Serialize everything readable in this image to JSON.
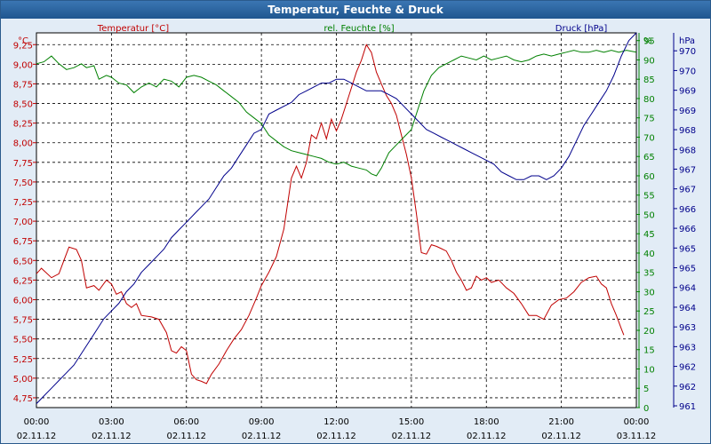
{
  "window": {
    "title": "Temperatur, Feuchte & Druck"
  },
  "colors": {
    "temperature": "#c00000",
    "humidity": "#008000",
    "pressure": "#00008b",
    "text": "#000000",
    "grid": "#000000",
    "background": "#e2ecf6",
    "title_bar": "#2a64a0"
  },
  "chart_data": {
    "type": "line",
    "title": "Temperatur, Feuchte & Druck",
    "grid": true,
    "x": {
      "ticks": [
        {
          "time": "00:00",
          "date": "02.11.12"
        },
        {
          "time": "03:00",
          "date": "02.11.12"
        },
        {
          "time": "06:00",
          "date": "02.11.12"
        },
        {
          "time": "09:00",
          "date": "02.11.12"
        },
        {
          "time": "12:00",
          "date": "02.11.12"
        },
        {
          "time": "15:00",
          "date": "02.11.12"
        },
        {
          "time": "18:00",
          "date": "02.11.12"
        },
        {
          "time": "21:00",
          "date": "02.11.12"
        },
        {
          "time": "00:00",
          "date": "03.11.12"
        }
      ],
      "range_hours": [
        0,
        24
      ]
    },
    "axes": {
      "temperature": {
        "label": "Temperatur [°C]",
        "unit": "°C",
        "range": [
          4.625,
          9.4
        ],
        "ticks": [
          "4,75",
          "5,00",
          "5,25",
          "5,50",
          "5,75",
          "6,00",
          "6,25",
          "6,50",
          "6,75",
          "7,00",
          "7,25",
          "7,50",
          "7,75",
          "8,00",
          "8,25",
          "8,50",
          "8,75",
          "9,00",
          "9,25"
        ]
      },
      "humidity": {
        "label": "rel. Feuchte [%]",
        "unit": "%",
        "range": [
          0,
          97
        ],
        "ticks": [
          "0",
          "5",
          "10",
          "15",
          "20",
          "25",
          "30",
          "35",
          "40",
          "45",
          "50",
          "55",
          "60",
          "65",
          "70",
          "75",
          "80",
          "85",
          "90",
          "95"
        ]
      },
      "pressure": {
        "label": "Druck [hPa]",
        "unit": "hPa",
        "range": [
          960.9,
          970.6
        ],
        "ticks": [
          "961",
          "962",
          "962",
          "963",
          "963",
          "964",
          "964",
          "965",
          "965",
          "966",
          "966",
          "967",
          "967",
          "968",
          "968",
          "969",
          "969",
          "970",
          "970"
        ]
      }
    },
    "series": [
      {
        "name": "Temperatur [°C]",
        "axis": "temperature",
        "points": [
          [
            0.0,
            6.33
          ],
          [
            0.2,
            6.4
          ],
          [
            0.6,
            6.28
          ],
          [
            0.9,
            6.33
          ],
          [
            1.1,
            6.5
          ],
          [
            1.3,
            6.67
          ],
          [
            1.6,
            6.64
          ],
          [
            1.8,
            6.5
          ],
          [
            2.0,
            6.15
          ],
          [
            2.3,
            6.18
          ],
          [
            2.5,
            6.12
          ],
          [
            2.8,
            6.25
          ],
          [
            3.0,
            6.2
          ],
          [
            3.2,
            6.07
          ],
          [
            3.4,
            6.1
          ],
          [
            3.6,
            5.95
          ],
          [
            3.8,
            5.9
          ],
          [
            4.0,
            5.95
          ],
          [
            4.2,
            5.8
          ],
          [
            4.6,
            5.78
          ],
          [
            4.9,
            5.75
          ],
          [
            5.2,
            5.58
          ],
          [
            5.4,
            5.35
          ],
          [
            5.6,
            5.32
          ],
          [
            5.8,
            5.4
          ],
          [
            6.0,
            5.35
          ],
          [
            6.2,
            5.05
          ],
          [
            6.4,
            4.98
          ],
          [
            6.6,
            4.96
          ],
          [
            6.8,
            4.93
          ],
          [
            7.0,
            5.05
          ],
          [
            7.3,
            5.18
          ],
          [
            7.6,
            5.35
          ],
          [
            7.9,
            5.5
          ],
          [
            8.2,
            5.62
          ],
          [
            8.5,
            5.8
          ],
          [
            8.8,
            6.02
          ],
          [
            9.0,
            6.18
          ],
          [
            9.3,
            6.35
          ],
          [
            9.6,
            6.55
          ],
          [
            9.9,
            6.9
          ],
          [
            10.2,
            7.55
          ],
          [
            10.4,
            7.7
          ],
          [
            10.6,
            7.55
          ],
          [
            10.8,
            7.75
          ],
          [
            11.0,
            8.1
          ],
          [
            11.2,
            8.05
          ],
          [
            11.4,
            8.25
          ],
          [
            11.6,
            8.05
          ],
          [
            11.8,
            8.3
          ],
          [
            12.0,
            8.15
          ],
          [
            12.2,
            8.3
          ],
          [
            12.4,
            8.5
          ],
          [
            12.6,
            8.7
          ],
          [
            12.8,
            8.9
          ],
          [
            13.0,
            9.05
          ],
          [
            13.2,
            9.25
          ],
          [
            13.4,
            9.15
          ],
          [
            13.6,
            8.9
          ],
          [
            13.8,
            8.75
          ],
          [
            14.0,
            8.6
          ],
          [
            14.2,
            8.5
          ],
          [
            14.4,
            8.35
          ],
          [
            14.6,
            8.1
          ],
          [
            14.8,
            7.85
          ],
          [
            15.0,
            7.55
          ],
          [
            15.2,
            7.1
          ],
          [
            15.4,
            6.6
          ],
          [
            15.6,
            6.58
          ],
          [
            15.8,
            6.7
          ],
          [
            16.0,
            6.68
          ],
          [
            16.2,
            6.65
          ],
          [
            16.4,
            6.62
          ],
          [
            16.6,
            6.5
          ],
          [
            16.8,
            6.35
          ],
          [
            17.0,
            6.25
          ],
          [
            17.2,
            6.12
          ],
          [
            17.4,
            6.15
          ],
          [
            17.6,
            6.3
          ],
          [
            17.8,
            6.25
          ],
          [
            18.0,
            6.28
          ],
          [
            18.2,
            6.22
          ],
          [
            18.5,
            6.25
          ],
          [
            18.8,
            6.15
          ],
          [
            19.1,
            6.08
          ],
          [
            19.4,
            5.95
          ],
          [
            19.7,
            5.8
          ],
          [
            20.0,
            5.8
          ],
          [
            20.3,
            5.75
          ],
          [
            20.6,
            5.93
          ],
          [
            20.9,
            6.0
          ],
          [
            21.2,
            6.02
          ],
          [
            21.5,
            6.1
          ],
          [
            21.8,
            6.22
          ],
          [
            22.1,
            6.28
          ],
          [
            22.4,
            6.3
          ],
          [
            22.6,
            6.2
          ],
          [
            22.8,
            6.15
          ],
          [
            23.0,
            5.95
          ],
          [
            23.2,
            5.8
          ],
          [
            23.4,
            5.63
          ],
          [
            23.5,
            5.55
          ]
        ]
      },
      {
        "name": "rel. Feuchte [%]",
        "axis": "humidity",
        "points": [
          [
            0.0,
            89
          ],
          [
            0.3,
            89.5
          ],
          [
            0.6,
            91
          ],
          [
            0.9,
            89
          ],
          [
            1.2,
            87.5
          ],
          [
            1.5,
            88
          ],
          [
            1.8,
            89
          ],
          [
            2.0,
            88
          ],
          [
            2.3,
            88.5
          ],
          [
            2.5,
            85
          ],
          [
            2.8,
            86
          ],
          [
            3.0,
            85.5
          ],
          [
            3.3,
            84
          ],
          [
            3.6,
            83.5
          ],
          [
            3.9,
            81.5
          ],
          [
            4.2,
            83
          ],
          [
            4.5,
            84
          ],
          [
            4.8,
            83
          ],
          [
            5.1,
            85
          ],
          [
            5.4,
            84.5
          ],
          [
            5.7,
            83
          ],
          [
            6.0,
            85.5
          ],
          [
            6.3,
            86
          ],
          [
            6.6,
            85.5
          ],
          [
            6.9,
            84.5
          ],
          [
            7.2,
            83.5
          ],
          [
            7.5,
            82
          ],
          [
            7.8,
            80.5
          ],
          [
            8.1,
            79
          ],
          [
            8.4,
            76.5
          ],
          [
            8.7,
            75
          ],
          [
            9.0,
            73.5
          ],
          [
            9.3,
            70.5
          ],
          [
            9.6,
            69
          ],
          [
            9.9,
            67.5
          ],
          [
            10.2,
            66.5
          ],
          [
            10.5,
            66
          ],
          [
            10.8,
            65.5
          ],
          [
            11.1,
            65
          ],
          [
            11.4,
            64.5
          ],
          [
            11.7,
            63.5
          ],
          [
            12.0,
            63
          ],
          [
            12.3,
            63.5
          ],
          [
            12.6,
            62.5
          ],
          [
            12.9,
            62
          ],
          [
            13.2,
            61.5
          ],
          [
            13.4,
            60.5
          ],
          [
            13.6,
            60
          ],
          [
            13.8,
            62
          ],
          [
            14.1,
            66
          ],
          [
            14.4,
            68
          ],
          [
            14.7,
            70
          ],
          [
            15.0,
            72
          ],
          [
            15.2,
            76
          ],
          [
            15.5,
            82
          ],
          [
            15.8,
            86
          ],
          [
            16.1,
            88
          ],
          [
            16.4,
            89
          ],
          [
            16.7,
            90
          ],
          [
            17.0,
            91
          ],
          [
            17.3,
            90.5
          ],
          [
            17.6,
            90
          ],
          [
            17.9,
            91
          ],
          [
            18.2,
            90
          ],
          [
            18.5,
            90.5
          ],
          [
            18.8,
            91
          ],
          [
            19.1,
            90
          ],
          [
            19.4,
            89.5
          ],
          [
            19.7,
            90
          ],
          [
            20.0,
            91
          ],
          [
            20.3,
            91.5
          ],
          [
            20.6,
            91
          ],
          [
            20.9,
            91.5
          ],
          [
            21.2,
            92
          ],
          [
            21.5,
            92.5
          ],
          [
            21.8,
            92
          ],
          [
            22.1,
            92
          ],
          [
            22.4,
            92.5
          ],
          [
            22.7,
            92
          ],
          [
            23.0,
            92.5
          ],
          [
            23.3,
            92
          ],
          [
            23.6,
            92.5
          ],
          [
            24.0,
            92
          ]
        ]
      },
      {
        "name": "Druck [hPa]",
        "axis": "pressure",
        "points": [
          [
            0.0,
            961.0
          ],
          [
            0.3,
            961.2
          ],
          [
            0.6,
            961.4
          ],
          [
            0.9,
            961.6
          ],
          [
            1.2,
            961.8
          ],
          [
            1.5,
            962.0
          ],
          [
            1.8,
            962.3
          ],
          [
            2.1,
            962.6
          ],
          [
            2.4,
            962.9
          ],
          [
            2.7,
            963.2
          ],
          [
            3.0,
            963.4
          ],
          [
            3.3,
            963.6
          ],
          [
            3.6,
            963.9
          ],
          [
            3.9,
            964.1
          ],
          [
            4.2,
            964.4
          ],
          [
            4.5,
            964.6
          ],
          [
            4.8,
            964.8
          ],
          [
            5.1,
            965.0
          ],
          [
            5.4,
            965.3
          ],
          [
            5.7,
            965.5
          ],
          [
            6.0,
            965.7
          ],
          [
            6.3,
            965.9
          ],
          [
            6.6,
            966.1
          ],
          [
            6.9,
            966.3
          ],
          [
            7.2,
            966.6
          ],
          [
            7.5,
            966.9
          ],
          [
            7.8,
            967.1
          ],
          [
            8.1,
            967.4
          ],
          [
            8.4,
            967.7
          ],
          [
            8.7,
            968.0
          ],
          [
            9.0,
            968.1
          ],
          [
            9.3,
            968.5
          ],
          [
            9.6,
            968.6
          ],
          [
            9.9,
            968.7
          ],
          [
            10.2,
            968.8
          ],
          [
            10.5,
            969.0
          ],
          [
            10.8,
            969.1
          ],
          [
            11.1,
            969.2
          ],
          [
            11.4,
            969.3
          ],
          [
            11.7,
            969.3
          ],
          [
            12.0,
            969.4
          ],
          [
            12.3,
            969.4
          ],
          [
            12.6,
            969.3
          ],
          [
            12.9,
            969.2
          ],
          [
            13.2,
            969.1
          ],
          [
            13.5,
            969.1
          ],
          [
            13.8,
            969.1
          ],
          [
            14.1,
            969.0
          ],
          [
            14.4,
            968.9
          ],
          [
            14.7,
            968.7
          ],
          [
            15.0,
            968.5
          ],
          [
            15.3,
            968.3
          ],
          [
            15.6,
            968.1
          ],
          [
            15.9,
            968.0
          ],
          [
            16.2,
            967.9
          ],
          [
            16.5,
            967.8
          ],
          [
            16.8,
            967.7
          ],
          [
            17.1,
            967.6
          ],
          [
            17.4,
            967.5
          ],
          [
            17.7,
            967.4
          ],
          [
            18.0,
            967.3
          ],
          [
            18.3,
            967.2
          ],
          [
            18.6,
            967.0
          ],
          [
            18.9,
            966.9
          ],
          [
            19.2,
            966.8
          ],
          [
            19.5,
            966.8
          ],
          [
            19.8,
            966.9
          ],
          [
            20.1,
            966.9
          ],
          [
            20.4,
            966.8
          ],
          [
            20.7,
            966.9
          ],
          [
            21.0,
            967.1
          ],
          [
            21.3,
            967.4
          ],
          [
            21.6,
            967.8
          ],
          [
            21.9,
            968.2
          ],
          [
            22.2,
            968.5
          ],
          [
            22.5,
            968.8
          ],
          [
            22.8,
            969.1
          ],
          [
            23.1,
            969.5
          ],
          [
            23.4,
            970.0
          ],
          [
            23.7,
            970.4
          ],
          [
            24.0,
            970.6
          ]
        ]
      }
    ]
  }
}
